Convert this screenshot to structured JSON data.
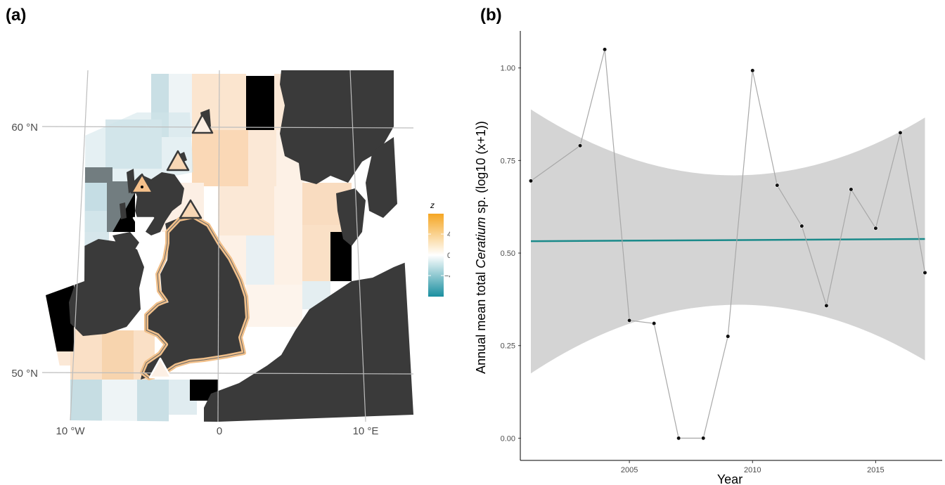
{
  "panels": {
    "a_label": "(a)",
    "b_label": "(b)"
  },
  "map": {
    "lat_labels": [
      "60 °N",
      "50 °N"
    ],
    "lon_labels": [
      "10 °W",
      "0",
      "10 °E"
    ],
    "legend_title": "z",
    "legend_ticks": [
      "4",
      "0",
      "−4"
    ],
    "colors": {
      "land": "#3a3a3a",
      "positive": "#f5a623",
      "negative": "#1a8fa0",
      "neutral": "#ffffff",
      "outline": "#f2c08a"
    }
  },
  "chart_data": {
    "type": "line",
    "x": [
      2001,
      2003,
      2004,
      2005,
      2006,
      2007,
      2008,
      2009,
      2010,
      2011,
      2012,
      2013,
      2014,
      2015,
      2016,
      2017
    ],
    "series": [
      {
        "values": [
          0.695,
          0.79,
          1.05,
          0.318,
          0.31,
          0.0,
          0.0,
          0.275,
          0.993,
          0.683,
          0.573,
          0.358,
          0.672,
          0.567,
          0.825,
          0.447
        ]
      }
    ],
    "trend": {
      "start": 0.532,
      "end": 0.538,
      "ci_lower": [
        0.175,
        0.36,
        0.21
      ],
      "ci_upper": [
        0.888,
        0.71,
        0.866
      ],
      "color": "#1a8a8a"
    },
    "xlabel": "Year",
    "ylabel_parts": [
      "Annual mean  total ",
      "Ceratium",
      " sp. (log10 (x+1))"
    ],
    "x_ticks": [
      2005,
      2010,
      2015
    ],
    "y_ticks": [
      "0.00",
      "0.25",
      "0.50",
      "0.75",
      "1.00"
    ],
    "xlim": [
      2000.6,
      2017.7
    ],
    "ylim": [
      -0.06,
      1.1
    ],
    "grid": false
  }
}
